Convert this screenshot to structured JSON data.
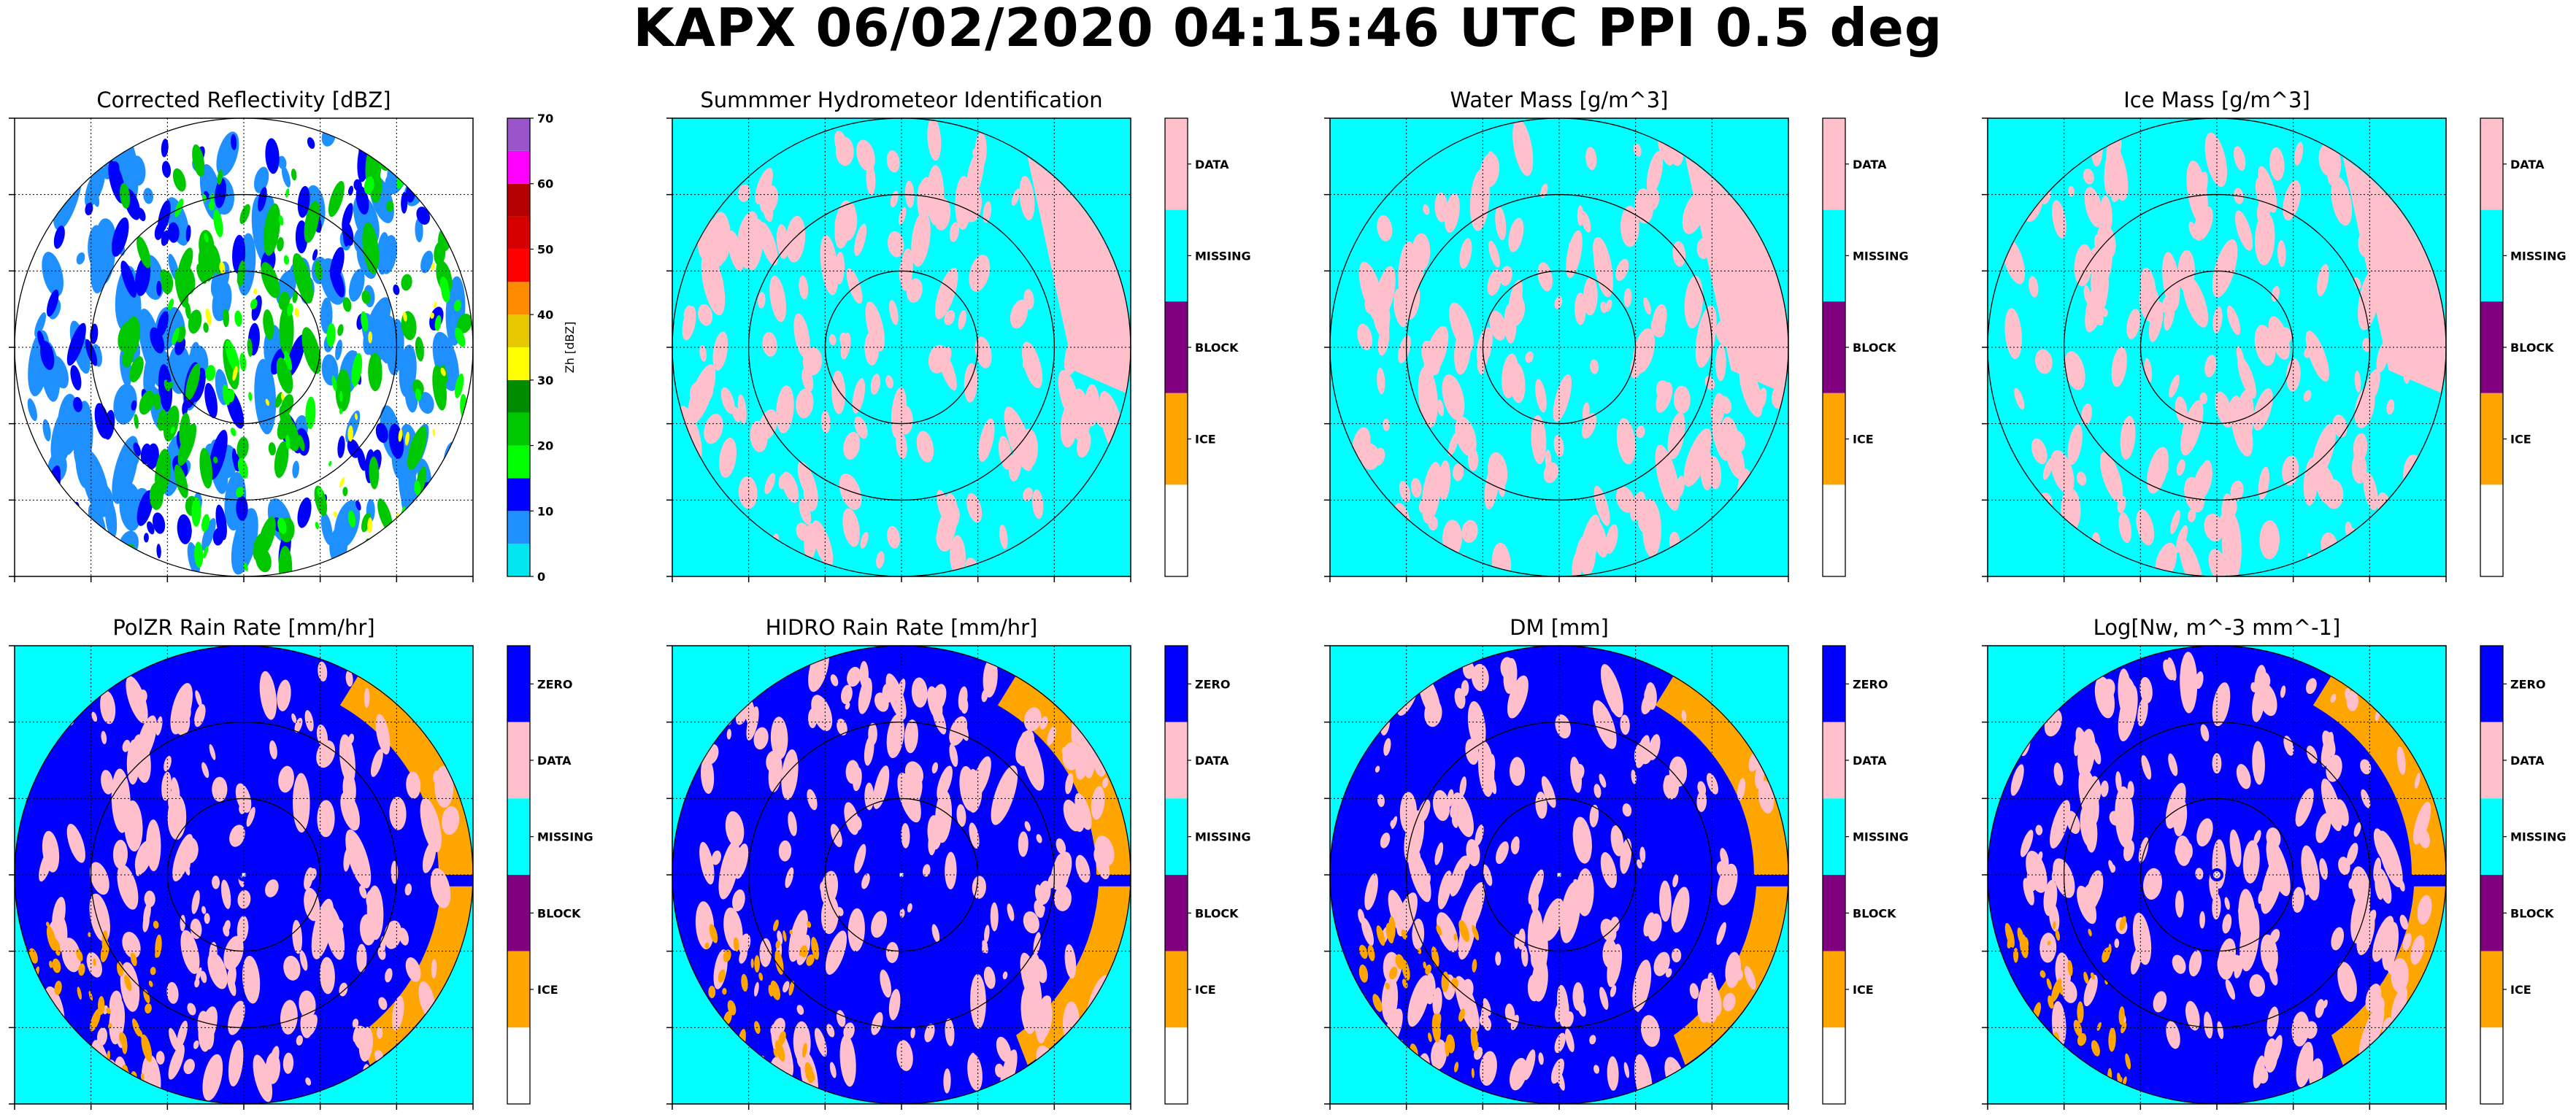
{
  "figure": {
    "title": "KAPX 06/02/2020 04:15:46 UTC PPI 0.5 deg"
  },
  "colors": {
    "cyan": "#00ffff",
    "pink": "#ffc0cb",
    "blue": "#0000ff",
    "purple": "#800080",
    "orange": "#ffa500",
    "white": "#ffffff"
  },
  "chart_data": [
    {
      "type": "heatmap",
      "title": "Corrected Reflectivity [dBZ]",
      "colorbar": {
        "kind": "continuous",
        "label": "Zh [dBZ]",
        "ticks": [
          "0",
          "10",
          "20",
          "30",
          "40",
          "50",
          "60",
          "70"
        ],
        "range": [
          0,
          70
        ],
        "colors": [
          "#00e5ee",
          "#1e90ff",
          "#0000ff",
          "#00ff00",
          "#00c800",
          "#008c00",
          "#ffff00",
          "#e6c800",
          "#ff8c00",
          "#ff0000",
          "#d70000",
          "#b40000",
          "#ff00ff",
          "#9955c9"
        ]
      },
      "background": "white",
      "grid": true
    },
    {
      "type": "heatmap",
      "title": "Summmer Hydrometeor Identification",
      "colorbar": {
        "kind": "categorical",
        "categories": [
          "DATA",
          "MISSING",
          "BLOCK",
          "ICE",
          ""
        ],
        "colors": [
          "#ffc0cb",
          "#00ffff",
          "#800080",
          "#ffa500",
          "#ffffff"
        ]
      },
      "background": "cyan",
      "grid": true
    },
    {
      "type": "heatmap",
      "title": "Water Mass [g/m^3]",
      "colorbar": {
        "kind": "categorical",
        "categories": [
          "DATA",
          "MISSING",
          "BLOCK",
          "ICE",
          ""
        ],
        "colors": [
          "#ffc0cb",
          "#00ffff",
          "#800080",
          "#ffa500",
          "#ffffff"
        ]
      },
      "background": "cyan",
      "grid": true
    },
    {
      "type": "heatmap",
      "title": "Ice Mass [g/m^3]",
      "colorbar": {
        "kind": "categorical",
        "categories": [
          "DATA",
          "MISSING",
          "BLOCK",
          "ICE",
          ""
        ],
        "colors": [
          "#ffc0cb",
          "#00ffff",
          "#800080",
          "#ffa500",
          "#ffffff"
        ]
      },
      "background": "cyan",
      "grid": true
    },
    {
      "type": "heatmap",
      "title": "PolZR Rain Rate [mm/hr]",
      "colorbar": {
        "kind": "categorical",
        "categories": [
          "ZERO",
          "DATA",
          "MISSING",
          "BLOCK",
          "ICE",
          ""
        ],
        "colors": [
          "#0000ff",
          "#ffc0cb",
          "#00ffff",
          "#800080",
          "#ffa500",
          "#ffffff"
        ]
      },
      "background": "cyan",
      "grid": true
    },
    {
      "type": "heatmap",
      "title": "HIDRO Rain Rate [mm/hr]",
      "colorbar": {
        "kind": "categorical",
        "categories": [
          "ZERO",
          "DATA",
          "MISSING",
          "BLOCK",
          "ICE",
          ""
        ],
        "colors": [
          "#0000ff",
          "#ffc0cb",
          "#00ffff",
          "#800080",
          "#ffa500",
          "#ffffff"
        ]
      },
      "background": "cyan",
      "grid": true
    },
    {
      "type": "heatmap",
      "title": "DM [mm]",
      "colorbar": {
        "kind": "categorical",
        "categories": [
          "ZERO",
          "DATA",
          "MISSING",
          "BLOCK",
          "ICE",
          ""
        ],
        "colors": [
          "#0000ff",
          "#ffc0cb",
          "#00ffff",
          "#800080",
          "#ffa500",
          "#ffffff"
        ]
      },
      "background": "cyan",
      "grid": true
    },
    {
      "type": "heatmap",
      "title": "Log[Nw, m^-3 mm^-1]",
      "colorbar": {
        "kind": "categorical",
        "categories": [
          "ZERO",
          "DATA",
          "MISSING",
          "BLOCK",
          "ICE",
          ""
        ],
        "colors": [
          "#0000ff",
          "#ffc0cb",
          "#00ffff",
          "#800080",
          "#ffa500",
          "#ffffff"
        ]
      },
      "background": "cyan",
      "grid": true
    }
  ]
}
